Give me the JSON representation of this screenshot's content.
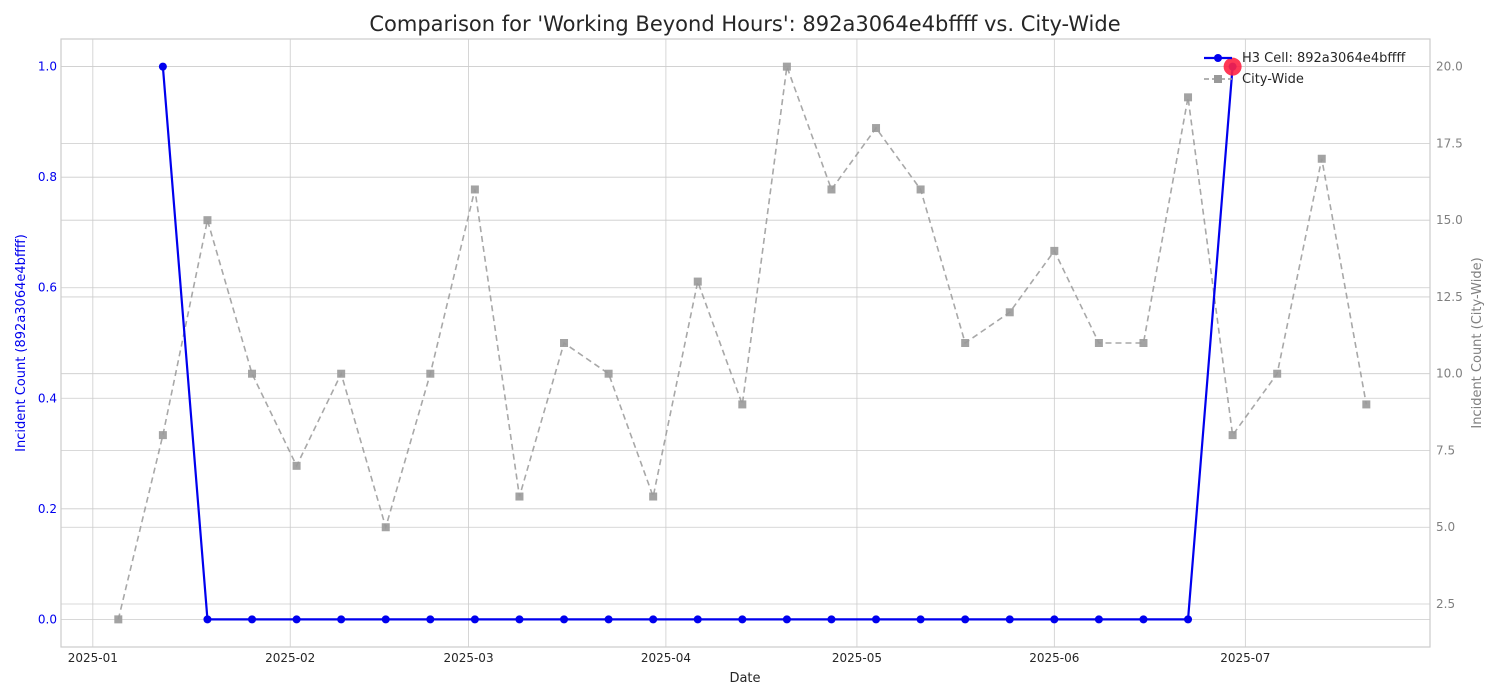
{
  "chart_data": {
    "type": "line",
    "title": "Comparison for 'Working Beyond Hours': 892a3064e4bffff vs. City-Wide",
    "xlabel": "Date",
    "ylabel_left": "Incident Count (892a3064e4bffff)",
    "ylabel_right": "Incident Count (City-Wide)",
    "x_ticks": [
      "2025-01-01",
      "2025-02-01",
      "2025-03-01",
      "2025-04-01",
      "2025-05-01",
      "2025-06-01",
      "2025-07-01"
    ],
    "x_tick_labels": [
      "2025-01",
      "2025-02",
      "2025-03",
      "2025-04",
      "2025-05",
      "2025-06",
      "2025-07"
    ],
    "x_range": [
      "2024-12-27",
      "2025-07-30"
    ],
    "y_left_range": [
      -0.05,
      1.05
    ],
    "y_left_ticks": [
      0.0,
      0.2,
      0.4,
      0.6,
      0.8,
      1.0
    ],
    "y_left_tick_labels": [
      "0.0",
      "0.2",
      "0.4",
      "0.6",
      "0.8",
      "1.0"
    ],
    "y_right_range": [
      1.1,
      20.9
    ],
    "y_right_ticks": [
      2.5,
      5.0,
      7.5,
      10.0,
      12.5,
      15.0,
      17.5,
      20.0
    ],
    "y_right_tick_labels": [
      "2.5",
      "5.0",
      "7.5",
      "10.0",
      "12.5",
      "15.0",
      "17.5",
      "20.0"
    ],
    "grid": true,
    "legend_position": "top-right",
    "series": [
      {
        "name": "H3 Cell: 892a3064e4bffff",
        "axis": "left",
        "color": "#0000ee",
        "style": "solid",
        "marker": "circle",
        "x": [
          "2025-01-12",
          "2025-01-19",
          "2025-01-26",
          "2025-02-02",
          "2025-02-09",
          "2025-02-16",
          "2025-02-23",
          "2025-03-02",
          "2025-03-09",
          "2025-03-16",
          "2025-03-23",
          "2025-03-30",
          "2025-04-06",
          "2025-04-13",
          "2025-04-20",
          "2025-04-27",
          "2025-05-04",
          "2025-05-11",
          "2025-05-18",
          "2025-05-25",
          "2025-06-01",
          "2025-06-08",
          "2025-06-15",
          "2025-06-22",
          "2025-06-29"
        ],
        "values": [
          1,
          0,
          0,
          0,
          0,
          0,
          0,
          0,
          0,
          0,
          0,
          0,
          0,
          0,
          0,
          0,
          0,
          0,
          0,
          0,
          0,
          0,
          0,
          0,
          1
        ]
      },
      {
        "name": "City-Wide",
        "axis": "right",
        "color": "#999999",
        "style": "dashed",
        "marker": "square",
        "x": [
          "2025-01-05",
          "2025-01-12",
          "2025-01-19",
          "2025-01-26",
          "2025-02-02",
          "2025-02-09",
          "2025-02-16",
          "2025-02-23",
          "2025-03-02",
          "2025-03-09",
          "2025-03-16",
          "2025-03-23",
          "2025-03-30",
          "2025-04-06",
          "2025-04-13",
          "2025-04-20",
          "2025-04-27",
          "2025-05-04",
          "2025-05-11",
          "2025-05-18",
          "2025-05-25",
          "2025-06-01",
          "2025-06-08",
          "2025-06-15",
          "2025-06-22",
          "2025-06-29",
          "2025-07-06",
          "2025-07-13",
          "2025-07-20"
        ],
        "values": [
          2,
          8,
          15,
          10,
          7,
          10,
          5,
          10,
          16,
          6,
          11,
          10,
          6,
          13,
          9,
          20,
          16,
          18,
          16,
          11,
          12,
          14,
          11,
          11,
          19,
          8,
          10,
          17,
          9
        ]
      }
    ],
    "highlight": {
      "series": 0,
      "x": "2025-06-29",
      "value": 1,
      "color": "#ff2244"
    },
    "colors": {
      "left_axis": "#0000ee",
      "right_axis": "#808080",
      "grid": "#cccccc",
      "text": "#262626"
    }
  }
}
